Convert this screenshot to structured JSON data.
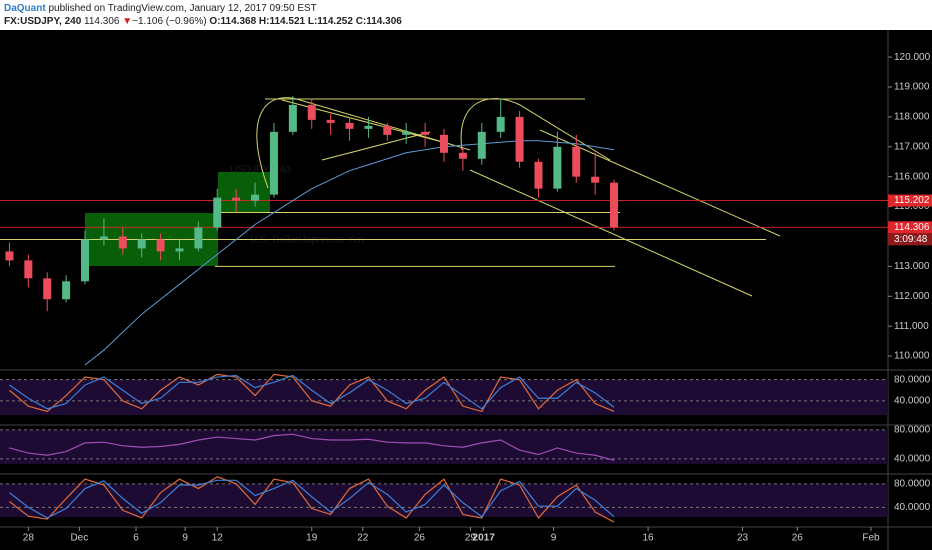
{
  "header": {
    "author": "DaQuant",
    "published": "published on TradingView.com, January 12, 2017 09:50 EST",
    "symbol": "FX:USDJPY, 240",
    "last": "114.306",
    "arrow": "▼",
    "change": "−1.106 (−0.96%)",
    "o": "O:114.368",
    "h": "H:114.521",
    "l": "L:114.252",
    "c": "C:114.306"
  },
  "chart_data": [
    {
      "type": "candlestick",
      "watermark": [
        "USDJPY, 240",
        "U.S. Dollar/Japanese Yen"
      ],
      "x": [
        -1,
        0,
        1,
        2,
        3,
        4,
        5,
        6,
        7,
        8,
        9,
        10,
        11,
        12,
        13,
        14,
        15,
        16,
        17,
        18,
        19,
        20,
        21,
        22,
        23,
        24,
        25,
        26,
        27,
        28,
        29,
        30,
        31
      ],
      "open": [
        113.5,
        113.2,
        112.6,
        111.9,
        112.5,
        113.9,
        114.0,
        113.6,
        113.9,
        113.5,
        113.6,
        114.3,
        115.3,
        115.2,
        115.4,
        117.5,
        118.4,
        117.9,
        117.8,
        117.6,
        117.7,
        117.4,
        117.5,
        117.4,
        116.8,
        116.6,
        117.5,
        118.0,
        116.5,
        115.6,
        117.0,
        116.0,
        115.8
      ],
      "high": [
        113.8,
        113.4,
        112.8,
        112.7,
        114.2,
        114.6,
        114.3,
        114.1,
        114.1,
        113.9,
        114.5,
        115.6,
        115.6,
        115.8,
        117.8,
        118.7,
        118.6,
        118.1,
        118.0,
        118.0,
        117.8,
        117.8,
        117.8,
        117.6,
        117.0,
        117.8,
        118.6,
        118.2,
        116.6,
        117.5,
        117.4,
        116.8,
        115.9
      ],
      "low": [
        113.0,
        112.3,
        111.5,
        111.8,
        112.4,
        113.7,
        113.4,
        113.3,
        113.2,
        113.2,
        113.5,
        114.2,
        114.8,
        115.0,
        115.3,
        117.4,
        117.6,
        117.4,
        117.2,
        117.3,
        117.2,
        117.1,
        117.0,
        116.5,
        116.2,
        116.4,
        117.3,
        116.3,
        115.3,
        115.5,
        115.8,
        115.4,
        114.2
      ],
      "close": [
        113.2,
        112.6,
        111.9,
        112.5,
        113.9,
        114.0,
        113.6,
        113.9,
        113.5,
        113.6,
        114.3,
        115.3,
        115.2,
        115.4,
        117.5,
        118.4,
        117.9,
        117.8,
        117.6,
        117.7,
        117.4,
        117.5,
        117.4,
        116.8,
        116.6,
        117.5,
        118.0,
        116.5,
        115.6,
        117.0,
        116.0,
        115.8,
        114.3
      ],
      "up_color": "#53b987",
      "down_color": "#eb4d5c",
      "moving_average": {
        "color": "#5b9bd5",
        "values": [
          null,
          null,
          null,
          null,
          109.7,
          110.2,
          110.8,
          111.4,
          111.9,
          112.4,
          112.9,
          113.4,
          113.9,
          114.4,
          114.8,
          115.2,
          115.6,
          115.9,
          116.2,
          116.4,
          116.6,
          116.8,
          116.9,
          117.0,
          117.05,
          117.1,
          117.15,
          117.2,
          117.2,
          117.15,
          117.1,
          117.0,
          116.9
        ]
      },
      "levels": {
        "color": "#d4d46a",
        "values": [
          118.6,
          114.8,
          113.9,
          113.0
        ]
      },
      "price_marks": {
        "color": "#e0262b",
        "values": [
          115.202,
          114.306
        ]
      },
      "countdown": "3:09:48",
      "xlim": [
        -1.5,
        45.5
      ],
      "xticks": [
        {
          "value": 0,
          "label": "28"
        },
        {
          "value": 2.7,
          "label": "Dec"
        },
        {
          "value": 5.7,
          "label": "6"
        },
        {
          "value": 8.3,
          "label": "9"
        },
        {
          "value": 10,
          "label": "12"
        },
        {
          "value": 15,
          "label": "19"
        },
        {
          "value": 17.7,
          "label": "22"
        },
        {
          "value": 20.7,
          "label": "26"
        },
        {
          "value": 23.4,
          "label": "29"
        },
        {
          "value": 24.1,
          "label": "2017"
        },
        {
          "value": 27.8,
          "label": "9"
        },
        {
          "value": 32.8,
          "label": "16"
        },
        {
          "value": 37.8,
          "label": "23"
        },
        {
          "value": 40.7,
          "label": "26"
        },
        {
          "value": 44.6,
          "label": "Feb"
        }
      ],
      "ylim": [
        109.6,
        120.84
      ],
      "yticks": [
        {
          "value": 110,
          "label": "110.000"
        },
        {
          "value": 111,
          "label": "111.000"
        },
        {
          "value": 112,
          "label": "112.000"
        },
        {
          "value": 113,
          "label": "113.000"
        },
        {
          "value": 114,
          "label": "114.000"
        },
        {
          "value": 115,
          "label": "115.000"
        },
        {
          "value": 116,
          "label": "116.000"
        },
        {
          "value": 117,
          "label": "117.000"
        },
        {
          "value": 118,
          "label": "118.000"
        },
        {
          "value": 119,
          "label": "119.000"
        },
        {
          "value": 120,
          "label": "120.000"
        }
      ]
    },
    {
      "type": "line",
      "ylim": [
        -1.8,
        94.5
      ],
      "yticks": [
        {
          "value": 80,
          "label": "80.0000"
        },
        {
          "value": 40,
          "label": "40.0000"
        }
      ],
      "series": [
        {
          "color": "#e06a3a",
          "values": [
            60,
            30,
            20,
            50,
            85,
            80,
            40,
            25,
            60,
            85,
            70,
            90,
            85,
            50,
            90,
            85,
            40,
            30,
            70,
            85,
            40,
            25,
            60,
            85,
            30,
            20,
            85,
            80,
            25,
            60,
            80,
            35,
            20
          ]
        },
        {
          "color": "#3d7fd8",
          "values": [
            70,
            45,
            25,
            35,
            70,
            85,
            60,
            35,
            45,
            75,
            75,
            85,
            88,
            65,
            75,
            88,
            60,
            35,
            55,
            80,
            60,
            35,
            45,
            75,
            50,
            25,
            65,
            85,
            45,
            45,
            75,
            55,
            28
          ]
        }
      ]
    },
    {
      "type": "line",
      "ylim": [
        21.9,
        83.9
      ],
      "yticks": [
        {
          "value": 80,
          "label": "80.0000"
        },
        {
          "value": 40,
          "label": "40.0000"
        }
      ],
      "series": [
        {
          "color": "#9c4fb0",
          "values": [
            55,
            48,
            45,
            50,
            62,
            63,
            58,
            56,
            57,
            60,
            66,
            70,
            68,
            66,
            72,
            74,
            68,
            66,
            66,
            67,
            63,
            62,
            62,
            58,
            56,
            62,
            66,
            52,
            46,
            55,
            48,
            45,
            38
          ]
        }
      ]
    },
    {
      "type": "line",
      "ylim": [
        10,
        93.3
      ],
      "yticks": [
        {
          "value": 80,
          "label": "80.0000"
        },
        {
          "value": 40,
          "label": "40.0000"
        }
      ],
      "series": [
        {
          "color": "#e06a3a",
          "values": [
            50,
            25,
            20,
            55,
            88,
            78,
            35,
            22,
            65,
            88,
            72,
            92,
            80,
            45,
            88,
            82,
            38,
            28,
            72,
            88,
            42,
            22,
            62,
            88,
            28,
            22,
            88,
            78,
            22,
            58,
            78,
            32,
            15
          ]
        },
        {
          "color": "#3d7fd8",
          "values": [
            65,
            40,
            22,
            38,
            72,
            85,
            55,
            30,
            48,
            78,
            78,
            86,
            86,
            60,
            72,
            86,
            58,
            32,
            55,
            82,
            62,
            32,
            45,
            78,
            48,
            24,
            68,
            84,
            42,
            42,
            72,
            52,
            24
          ]
        }
      ]
    }
  ]
}
